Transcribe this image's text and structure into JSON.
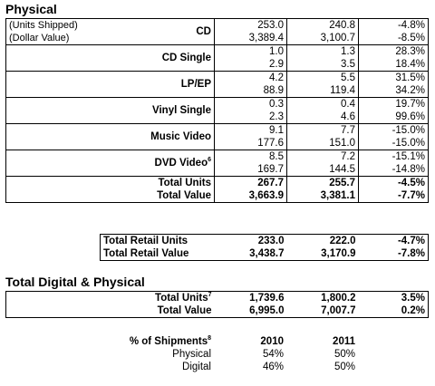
{
  "physical": {
    "heading": "Physical",
    "units_note": "(Units Shipped)",
    "dollar_note": "(Dollar Value)",
    "rows": [
      {
        "label": "CD",
        "sup": "",
        "u2010": "253.0",
        "u2011": "240.8",
        "uchg": "-4.8%",
        "v2010": "3,389.4",
        "v2011": "3,100.7",
        "vchg": "-8.5%"
      },
      {
        "label": "CD Single",
        "sup": "",
        "u2010": "1.0",
        "u2011": "1.3",
        "uchg": "28.3%",
        "v2010": "2.9",
        "v2011": "3.5",
        "vchg": "18.4%"
      },
      {
        "label": "LP/EP",
        "sup": "",
        "u2010": "4.2",
        "u2011": "5.5",
        "uchg": "31.5%",
        "v2010": "88.9",
        "v2011": "119.4",
        "vchg": "34.2%"
      },
      {
        "label": "Vinyl Single",
        "sup": "",
        "u2010": "0.3",
        "u2011": "0.4",
        "uchg": "19.7%",
        "v2010": "2.3",
        "v2011": "4.6",
        "vchg": "99.6%"
      },
      {
        "label": "Music Video",
        "sup": "",
        "u2010": "9.1",
        "u2011": "7.7",
        "uchg": "-15.0%",
        "v2010": "177.6",
        "v2011": "151.0",
        "vchg": "-15.0%"
      },
      {
        "label": "DVD Video",
        "sup": "6",
        "u2010": "8.5",
        "u2011": "7.2",
        "uchg": "-15.1%",
        "v2010": "169.7",
        "v2011": "144.5",
        "vchg": "-14.8%"
      }
    ],
    "total_units": {
      "label": "Total Units",
      "v2010": "267.7",
      "v2011": "255.7",
      "chg": "-4.5%"
    },
    "total_value": {
      "label": "Total Value",
      "v2010": "3,663.9",
      "v2011": "3,381.1",
      "chg": "-7.7%"
    }
  },
  "retail": {
    "units": {
      "label": "Total Retail Units",
      "v2010": "233.0",
      "v2011": "222.0",
      "chg": "-4.7%"
    },
    "value": {
      "label": "Total Retail Value",
      "v2010": "3,438.7",
      "v2011": "3,170.9",
      "chg": "-7.8%"
    }
  },
  "digital_physical": {
    "heading": "Total Digital & Physical",
    "units": {
      "label": "Total Units",
      "sup": "7",
      "v2010": "1,739.6",
      "v2011": "1,800.2",
      "chg": "3.5%"
    },
    "value": {
      "label": "Total Value",
      "v2010": "6,995.0",
      "v2011": "7,007.7",
      "chg": "0.2%"
    }
  },
  "shipments": {
    "label": "% of Shipments",
    "sup": "8",
    "col2010": "2010",
    "col2011": "2011",
    "physical": {
      "label": "Physical",
      "v2010": "54%",
      "v2011": "50%"
    },
    "digital": {
      "label": "Digital",
      "v2010": "46%",
      "v2011": "50%"
    }
  }
}
